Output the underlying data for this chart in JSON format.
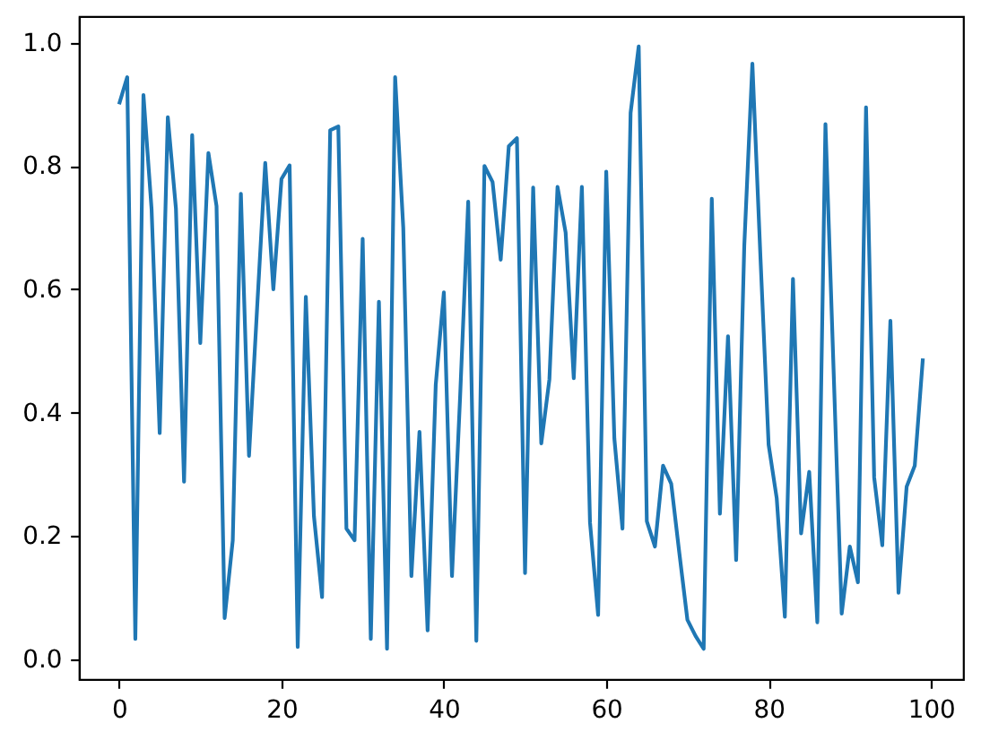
{
  "chart_data": {
    "type": "line",
    "color": "#1f77b4",
    "x": [
      0,
      1,
      2,
      3,
      4,
      5,
      6,
      7,
      8,
      9,
      10,
      11,
      12,
      13,
      14,
      15,
      16,
      17,
      18,
      19,
      20,
      21,
      22,
      23,
      24,
      25,
      26,
      27,
      28,
      29,
      30,
      31,
      32,
      33,
      34,
      35,
      36,
      37,
      38,
      39,
      40,
      41,
      42,
      43,
      44,
      45,
      46,
      47,
      48,
      49,
      50,
      51,
      52,
      53,
      54,
      55,
      56,
      57,
      58,
      59,
      60,
      61,
      62,
      63,
      64,
      65,
      66,
      67,
      68,
      69,
      70,
      71,
      72,
      73,
      74,
      75,
      76,
      77,
      78,
      79,
      80,
      81,
      82,
      83,
      84,
      85,
      86,
      87,
      88,
      89,
      90,
      91,
      92,
      93,
      94,
      95,
      96,
      97,
      98,
      99
    ],
    "values": [
      0.9,
      0.944,
      0.033,
      0.915,
      0.73,
      0.367,
      0.879,
      0.731,
      0.288,
      0.85,
      0.513,
      0.821,
      0.735,
      0.067,
      0.193,
      0.755,
      0.33,
      0.57,
      0.805,
      0.6,
      0.779,
      0.801,
      0.02,
      0.588,
      0.232,
      0.101,
      0.858,
      0.864,
      0.212,
      0.193,
      0.682,
      0.033,
      0.58,
      0.017,
      0.944,
      0.7,
      0.135,
      0.369,
      0.047,
      0.445,
      0.595,
      0.135,
      0.425,
      0.742,
      0.03,
      0.8,
      0.774,
      0.648,
      0.832,
      0.845,
      0.14,
      0.765,
      0.35,
      0.454,
      0.766,
      0.692,
      0.456,
      0.766,
      0.222,
      0.072,
      0.791,
      0.358,
      0.212,
      0.886,
      0.994,
      0.224,
      0.183,
      0.314,
      0.285,
      0.173,
      0.064,
      0.038,
      0.017,
      0.747,
      0.236,
      0.524,
      0.161,
      0.67,
      0.966,
      0.65,
      0.348,
      0.261,
      0.069,
      0.617,
      0.204,
      0.304,
      0.06,
      0.868,
      0.47,
      0.074,
      0.183,
      0.125,
      0.895,
      0.295,
      0.185,
      0.549,
      0.108,
      0.28,
      0.314,
      0.488
    ],
    "xlim": [
      -4.95,
      103.95
    ],
    "ylim": [
      -0.032,
      1.043
    ],
    "xticks": [
      0,
      20,
      40,
      60,
      80,
      100
    ],
    "yticks": [
      {
        "value": 0,
        "label": "0.0"
      },
      0.2,
      0.4,
      0.6,
      0.8,
      {
        "value": 1,
        "label": "1.0"
      }
    ],
    "grid": false
  }
}
